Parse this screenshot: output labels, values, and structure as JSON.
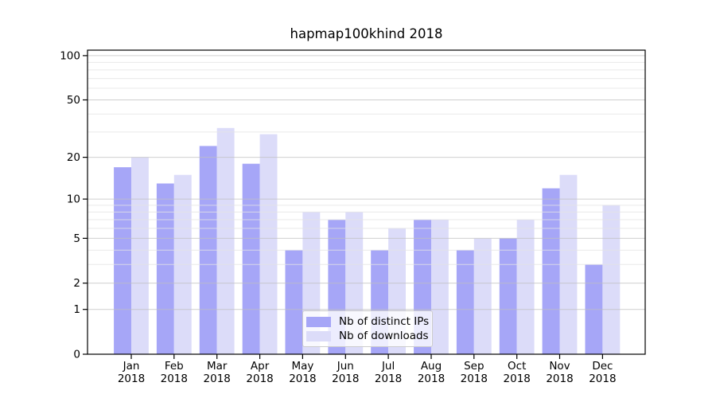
{
  "chart_data": {
    "type": "bar",
    "title": "hapmap100khind 2018",
    "categories": [
      "Jan 2018",
      "Feb 2018",
      "Mar 2018",
      "Apr 2018",
      "May 2018",
      "Jun 2018",
      "Jul 2018",
      "Aug 2018",
      "Sep 2018",
      "Oct 2018",
      "Nov 2018",
      "Dec 2018"
    ],
    "series": [
      {
        "name": "Nb of distinct IPs",
        "color": "#a6a6f7",
        "values": [
          17,
          13,
          24,
          18,
          4,
          7,
          4,
          7,
          4,
          5,
          12,
          3
        ]
      },
      {
        "name": "Nb of downloads",
        "color": "#dcdcf9",
        "values": [
          20,
          15,
          32,
          29,
          8,
          8,
          6,
          7,
          5,
          7,
          15,
          9
        ]
      }
    ],
    "xlabel": "",
    "ylabel": "",
    "yscale": "log1p",
    "ylim": [
      0,
      109
    ],
    "yticks": [
      0,
      1,
      2,
      5,
      10,
      20,
      50,
      100
    ],
    "minor_gridlines": [
      3,
      4,
      6,
      7,
      8,
      9,
      30,
      40,
      60,
      70,
      80,
      90
    ],
    "grid": true,
    "gridlines_above_bars": true,
    "legend_position": "lower-center",
    "colors": {
      "major_grid": "#c0c0c0",
      "minor_grid": "#e4e4e4",
      "axis": "#000000"
    }
  }
}
